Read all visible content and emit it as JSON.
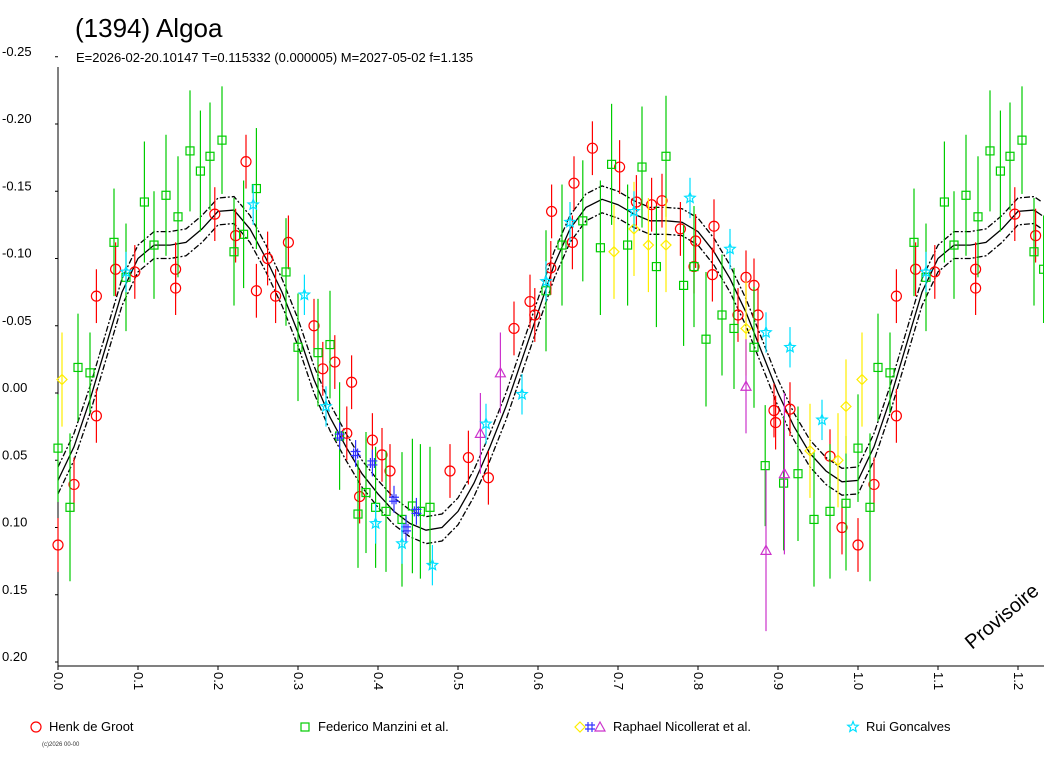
{
  "chart_data": {
    "type": "scatter",
    "title": "(1394) Algoa",
    "subtitle": "E=2026-02-20.10147    T=0.115332 (0.000005)    M=2027-05-02    f=1.135",
    "watermark": "Provisoire",
    "copyright": "(c)2026 00-00",
    "xlim": [
      0.0,
      1.23
    ],
    "ylim": [
      -0.25,
      0.2
    ],
    "y_inverted": true,
    "grid": false,
    "legend_placement": "bottom",
    "x_ticks": [
      "0.0",
      "0.1",
      "0.2",
      "0.3",
      "0.4",
      "0.5",
      "0.6",
      "0.7",
      "0.8",
      "0.9",
      "1.0",
      "1.1",
      "1.2"
    ],
    "x_tick_values": [
      0.0,
      0.1,
      0.2,
      0.3,
      0.4,
      0.5,
      0.6,
      0.7,
      0.8,
      0.9,
      1.0,
      1.1,
      1.2
    ],
    "y_ticks": [
      "-0.25",
      "-0.20",
      "-0.15",
      "-0.10",
      "-0.05",
      "0.00",
      "0.05",
      "0.10",
      "0.15",
      "0.20"
    ],
    "y_tick_values": [
      -0.25,
      -0.2,
      -0.15,
      -0.1,
      -0.05,
      0.0,
      0.05,
      0.1,
      0.15,
      0.2
    ],
    "legend": [
      {
        "label": "Henk de Groot",
        "markers": [
          "circle"
        ],
        "colors": [
          "#ff0000"
        ]
      },
      {
        "label": "Federico Manzini et al.",
        "markers": [
          "square"
        ],
        "colors": [
          "#00cc00"
        ]
      },
      {
        "label": "Raphael Nicollerat et al.",
        "markers": [
          "diamond",
          "hash",
          "triangle"
        ],
        "colors": [
          "#ffee00",
          "#3333ff",
          "#cc33cc"
        ]
      },
      {
        "label": "Rui Goncalves",
        "markers": [
          "star"
        ],
        "colors": [
          "#00e0ff"
        ]
      }
    ],
    "fit_curve": [
      [
        0.0,
        0.065
      ],
      [
        0.02,
        0.04
      ],
      [
        0.04,
        0.005
      ],
      [
        0.06,
        -0.035
      ],
      [
        0.08,
        -0.075
      ],
      [
        0.1,
        -0.1
      ],
      [
        0.12,
        -0.11
      ],
      [
        0.14,
        -0.11
      ],
      [
        0.16,
        -0.112
      ],
      [
        0.18,
        -0.122
      ],
      [
        0.2,
        -0.135
      ],
      [
        0.22,
        -0.136
      ],
      [
        0.24,
        -0.122
      ],
      [
        0.26,
        -0.1
      ],
      [
        0.28,
        -0.075
      ],
      [
        0.3,
        -0.045
      ],
      [
        0.32,
        -0.01
      ],
      [
        0.34,
        0.018
      ],
      [
        0.36,
        0.04
      ],
      [
        0.38,
        0.06
      ],
      [
        0.4,
        0.075
      ],
      [
        0.42,
        0.088
      ],
      [
        0.44,
        0.097
      ],
      [
        0.46,
        0.102
      ],
      [
        0.48,
        0.1
      ],
      [
        0.5,
        0.088
      ],
      [
        0.52,
        0.067
      ],
      [
        0.54,
        0.04
      ],
      [
        0.56,
        0.01
      ],
      [
        0.58,
        -0.025
      ],
      [
        0.6,
        -0.06
      ],
      [
        0.62,
        -0.095
      ],
      [
        0.64,
        -0.122
      ],
      [
        0.66,
        -0.138
      ],
      [
        0.68,
        -0.144
      ],
      [
        0.7,
        -0.14
      ],
      [
        0.72,
        -0.133
      ],
      [
        0.74,
        -0.128
      ],
      [
        0.76,
        -0.128
      ],
      [
        0.78,
        -0.127
      ],
      [
        0.8,
        -0.12
      ],
      [
        0.82,
        -0.105
      ],
      [
        0.84,
        -0.085
      ],
      [
        0.86,
        -0.06
      ],
      [
        0.88,
        -0.03
      ],
      [
        0.9,
        0.0
      ],
      [
        0.92,
        0.025
      ],
      [
        0.94,
        0.045
      ],
      [
        0.96,
        0.058
      ],
      [
        0.98,
        0.066
      ],
      [
        1.0,
        0.065
      ],
      [
        1.02,
        0.04
      ],
      [
        1.04,
        0.005
      ],
      [
        1.06,
        -0.035
      ],
      [
        1.08,
        -0.075
      ],
      [
        1.1,
        -0.1
      ],
      [
        1.12,
        -0.11
      ],
      [
        1.14,
        -0.11
      ],
      [
        1.16,
        -0.112
      ],
      [
        1.18,
        -0.122
      ],
      [
        1.2,
        -0.135
      ],
      [
        1.22,
        -0.136
      ],
      [
        1.23,
        -0.132
      ]
    ],
    "fit_envelope": 0.01,
    "series": [
      {
        "name": "Henk de Groot",
        "marker": "circle",
        "color": "#ff0000",
        "points": [
          [
            0.0,
            0.113,
            0.02
          ],
          [
            0.02,
            0.068,
            0.02
          ],
          [
            0.048,
            0.017,
            0.02
          ],
          [
            0.048,
            -0.072,
            0.02
          ],
          [
            0.072,
            -0.092,
            0.02
          ],
          [
            0.096,
            -0.09,
            0.02
          ],
          [
            0.147,
            -0.078,
            0.02
          ],
          [
            0.147,
            -0.092,
            0.02
          ],
          [
            0.196,
            -0.133,
            0.02
          ],
          [
            0.222,
            -0.117,
            0.02
          ],
          [
            0.235,
            -0.172,
            0.02
          ],
          [
            0.248,
            -0.076,
            0.02
          ],
          [
            0.262,
            -0.1,
            0.02
          ],
          [
            0.272,
            -0.072,
            0.02
          ],
          [
            0.288,
            -0.112,
            0.02
          ],
          [
            0.32,
            -0.05,
            0.02
          ],
          [
            0.331,
            -0.018,
            0.02
          ],
          [
            0.346,
            -0.023,
            0.02
          ],
          [
            0.361,
            0.03,
            0.02
          ],
          [
            0.367,
            -0.008,
            0.02
          ],
          [
            0.377,
            0.077,
            0.02
          ],
          [
            0.393,
            0.035,
            0.02
          ],
          [
            0.405,
            0.046,
            0.02
          ],
          [
            0.415,
            0.058,
            0.02
          ],
          [
            0.49,
            0.058,
            0.02
          ],
          [
            0.513,
            0.048,
            0.02
          ],
          [
            0.538,
            0.063,
            0.02
          ],
          [
            0.57,
            -0.048,
            0.02
          ],
          [
            0.59,
            -0.068,
            0.02
          ],
          [
            0.596,
            -0.058,
            0.02
          ],
          [
            0.616,
            -0.093,
            0.02
          ],
          [
            0.617,
            -0.135,
            0.02
          ],
          [
            0.643,
            -0.112,
            0.02
          ],
          [
            0.645,
            -0.156,
            0.02
          ],
          [
            0.668,
            -0.182,
            0.02
          ],
          [
            0.702,
            -0.168,
            0.02
          ],
          [
            0.723,
            -0.142,
            0.02
          ],
          [
            0.742,
            -0.14,
            0.02
          ],
          [
            0.755,
            -0.143,
            0.02
          ],
          [
            0.778,
            -0.122,
            0.02
          ],
          [
            0.795,
            -0.094,
            0.02
          ],
          [
            0.797,
            -0.113,
            0.02
          ],
          [
            0.818,
            -0.088,
            0.02
          ],
          [
            0.82,
            -0.124,
            0.02
          ],
          [
            0.85,
            -0.058,
            0.02
          ],
          [
            0.86,
            -0.086,
            0.02
          ],
          [
            0.87,
            -0.08,
            0.02
          ],
          [
            0.875,
            -0.058,
            0.02
          ],
          [
            0.895,
            0.013,
            0.02
          ],
          [
            0.897,
            0.022,
            0.02
          ],
          [
            0.915,
            0.012,
            0.02
          ],
          [
            0.965,
            0.047,
            0.02
          ],
          [
            0.98,
            0.1,
            0.02
          ],
          [
            1.0,
            0.113,
            0.02
          ],
          [
            1.02,
            0.068,
            0.02
          ],
          [
            1.048,
            0.017,
            0.02
          ],
          [
            1.048,
            -0.072,
            0.02
          ],
          [
            1.072,
            -0.092,
            0.02
          ],
          [
            1.096,
            -0.09,
            0.02
          ],
          [
            1.147,
            -0.078,
            0.02
          ],
          [
            1.147,
            -0.092,
            0.02
          ],
          [
            1.196,
            -0.133,
            0.02
          ],
          [
            1.222,
            -0.117,
            0.02
          ],
          [
            1.235,
            -0.172,
            0.02
          ]
        ]
      },
      {
        "name": "Federico Manzini et al.",
        "marker": "square",
        "color": "#00cc00",
        "points": [
          [
            0.0,
            0.041,
            0.04
          ],
          [
            0.015,
            0.085,
            0.055
          ],
          [
            0.025,
            -0.019,
            0.04
          ],
          [
            0.04,
            -0.015,
            0.03
          ],
          [
            0.07,
            -0.112,
            0.04
          ],
          [
            0.085,
            -0.086,
            0.04
          ],
          [
            0.108,
            -0.142,
            0.045
          ],
          [
            0.12,
            -0.11,
            0.04
          ],
          [
            0.135,
            -0.147,
            0.045
          ],
          [
            0.15,
            -0.131,
            0.045
          ],
          [
            0.165,
            -0.18,
            0.045
          ],
          [
            0.178,
            -0.165,
            0.045
          ],
          [
            0.19,
            -0.176,
            0.04
          ],
          [
            0.205,
            -0.188,
            0.04
          ],
          [
            0.22,
            -0.105,
            0.04
          ],
          [
            0.232,
            -0.118,
            0.04
          ],
          [
            0.248,
            -0.152,
            0.045
          ],
          [
            0.285,
            -0.09,
            0.04
          ],
          [
            0.3,
            -0.034,
            0.04
          ],
          [
            0.325,
            -0.03,
            0.04
          ],
          [
            0.34,
            -0.036,
            0.04
          ],
          [
            0.352,
            0.032,
            0.04
          ],
          [
            0.375,
            0.09,
            0.04
          ],
          [
            0.385,
            0.074,
            0.045
          ],
          [
            0.397,
            0.085,
            0.045
          ],
          [
            0.41,
            0.088,
            0.045
          ],
          [
            0.43,
            0.094,
            0.05
          ],
          [
            0.443,
            0.084,
            0.05
          ],
          [
            0.453,
            0.088,
            0.05
          ],
          [
            0.465,
            0.085,
            0.045
          ],
          [
            0.61,
            -0.076,
            0.045
          ],
          [
            0.63,
            -0.11,
            0.045
          ],
          [
            0.656,
            -0.128,
            0.045
          ],
          [
            0.678,
            -0.108,
            0.05
          ],
          [
            0.692,
            -0.17,
            0.045
          ],
          [
            0.712,
            -0.11,
            0.045
          ],
          [
            0.73,
            -0.168,
            0.045
          ],
          [
            0.748,
            -0.094,
            0.045
          ],
          [
            0.76,
            -0.176,
            0.045
          ],
          [
            0.782,
            -0.08,
            0.045
          ],
          [
            0.795,
            -0.094,
            0.045
          ],
          [
            0.81,
            -0.04,
            0.05
          ],
          [
            0.83,
            -0.058,
            0.045
          ],
          [
            0.845,
            -0.048,
            0.045
          ],
          [
            0.87,
            -0.034,
            0.045
          ],
          [
            0.884,
            0.054,
            0.045
          ],
          [
            0.907,
            0.067,
            0.05
          ],
          [
            0.925,
            0.06,
            0.05
          ],
          [
            0.945,
            0.094,
            0.05
          ],
          [
            0.965,
            0.088,
            0.05
          ],
          [
            0.985,
            0.082,
            0.05
          ],
          [
            1.0,
            0.041,
            0.04
          ],
          [
            1.015,
            0.085,
            0.055
          ],
          [
            1.025,
            -0.019,
            0.04
          ],
          [
            1.04,
            -0.015,
            0.03
          ],
          [
            1.07,
            -0.112,
            0.04
          ],
          [
            1.085,
            -0.086,
            0.04
          ],
          [
            1.108,
            -0.142,
            0.045
          ],
          [
            1.12,
            -0.11,
            0.04
          ],
          [
            1.135,
            -0.147,
            0.045
          ],
          [
            1.15,
            -0.131,
            0.045
          ],
          [
            1.165,
            -0.18,
            0.045
          ],
          [
            1.178,
            -0.165,
            0.045
          ],
          [
            1.19,
            -0.176,
            0.04
          ],
          [
            1.205,
            -0.188,
            0.04
          ],
          [
            1.22,
            -0.105,
            0.04
          ],
          [
            1.232,
            -0.092,
            0.04
          ]
        ]
      },
      {
        "name": "Raphael Nicollerat et al.",
        "marker": "diamond",
        "color": "#ffee00",
        "points": [
          [
            0.005,
            -0.01,
            0.035
          ],
          [
            0.695,
            -0.105,
            0.035
          ],
          [
            0.72,
            -0.122,
            0.035
          ],
          [
            0.738,
            -0.11,
            0.035
          ],
          [
            0.76,
            -0.11,
            0.035
          ],
          [
            0.86,
            -0.048,
            0.035
          ],
          [
            0.94,
            0.043,
            0.035
          ],
          [
            0.975,
            0.05,
            0.035
          ],
          [
            0.985,
            0.01,
            0.035
          ],
          [
            1.005,
            -0.01,
            0.035
          ]
        ]
      },
      {
        "name": "Raphael Nicollerat et al.",
        "marker": "hash",
        "color": "#3333ff",
        "points": [
          [
            0.352,
            0.032,
            0.01
          ],
          [
            0.372,
            0.045,
            0.01
          ],
          [
            0.393,
            0.052,
            0.01
          ],
          [
            0.42,
            0.079,
            0.01
          ],
          [
            0.435,
            0.101,
            0.01
          ],
          [
            0.448,
            0.088,
            0.01
          ]
        ]
      },
      {
        "name": "Raphael Nicollerat et al.",
        "marker": "triangle",
        "color": "#cc33cc",
        "points": [
          [
            0.528,
            0.03,
            0.03
          ],
          [
            0.553,
            -0.015,
            0.03
          ],
          [
            0.86,
            -0.005,
            0.035
          ],
          [
            0.885,
            0.117,
            0.06
          ],
          [
            0.908,
            0.06,
            0.06
          ]
        ]
      },
      {
        "name": "Rui Goncalves",
        "marker": "star",
        "color": "#00e0ff",
        "points": [
          [
            0.085,
            -0.09,
            0.015
          ],
          [
            0.244,
            -0.14,
            0.015
          ],
          [
            0.308,
            -0.073,
            0.015
          ],
          [
            0.335,
            0.01,
            0.015
          ],
          [
            0.397,
            0.097,
            0.015
          ],
          [
            0.43,
            0.112,
            0.015
          ],
          [
            0.468,
            0.128,
            0.015
          ],
          [
            0.535,
            0.023,
            0.015
          ],
          [
            0.58,
            0.001,
            0.015
          ],
          [
            0.61,
            -0.083,
            0.015
          ],
          [
            0.64,
            -0.127,
            0.015
          ],
          [
            0.72,
            -0.135,
            0.015
          ],
          [
            0.79,
            -0.145,
            0.015
          ],
          [
            0.84,
            -0.107,
            0.015
          ],
          [
            0.885,
            -0.045,
            0.015
          ],
          [
            0.915,
            -0.034,
            0.015
          ],
          [
            0.955,
            0.02,
            0.015
          ],
          [
            1.085,
            -0.09,
            0.015
          ]
        ]
      }
    ]
  }
}
